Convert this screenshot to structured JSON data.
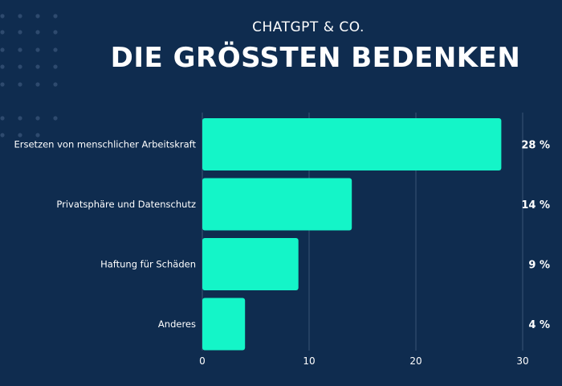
{
  "header": {
    "subtitle": "CHATGPT & CO.",
    "title": "DIE GRÖSSTEN BEDENKEN"
  },
  "colors": {
    "background": "#0f2c4f",
    "bar": "#14f5c8",
    "text": "#ffffff",
    "grid": "#3a5575",
    "dots": "#2e4a6e"
  },
  "chart_data": {
    "type": "bar",
    "orientation": "horizontal",
    "categories": [
      "Ersetzen von menschlicher Arbeitskraft",
      "Privatsphäre und Datenschutz",
      "Haftung für Schäden",
      "Anderes"
    ],
    "values": [
      28,
      14,
      9,
      4
    ],
    "value_labels": [
      "28 %",
      "14 %",
      "9 %",
      "4 %"
    ],
    "xlim": [
      0,
      30
    ],
    "xticks": [
      0,
      10,
      20,
      30
    ],
    "grid": true,
    "legend": "none"
  }
}
